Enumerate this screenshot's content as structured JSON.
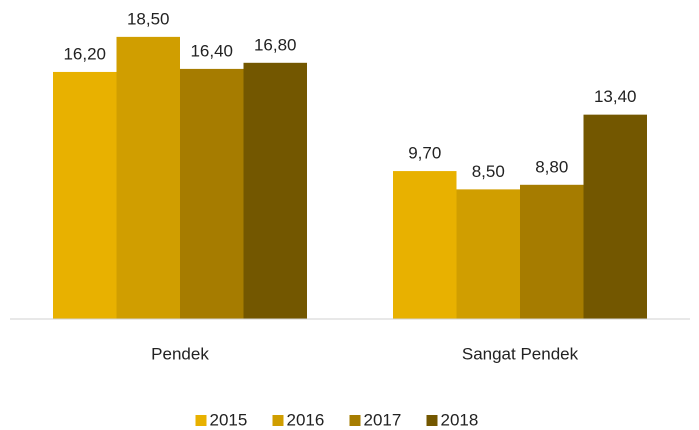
{
  "chart_data": {
    "type": "bar",
    "categories": [
      "Pendek",
      "Sangat Pendek"
    ],
    "series": [
      {
        "name": "2015",
        "color": "#E8B100",
        "values": [
          16.2,
          9.7
        ],
        "value_labels": [
          "16,20",
          "9,70"
        ]
      },
      {
        "name": "2016",
        "color": "#D09E00",
        "values": [
          18.5,
          8.5
        ],
        "value_labels": [
          "18,50",
          "8,50"
        ]
      },
      {
        "name": "2017",
        "color": "#A67C00",
        "values": [
          16.4,
          8.8
        ],
        "value_labels": [
          "16,40",
          "8,80"
        ]
      },
      {
        "name": "2018",
        "color": "#735700",
        "values": [
          16.8,
          13.4
        ],
        "value_labels": [
          "16,80",
          "13,40"
        ]
      }
    ],
    "ylim": [
      0,
      20
    ],
    "legend": "bottom"
  }
}
